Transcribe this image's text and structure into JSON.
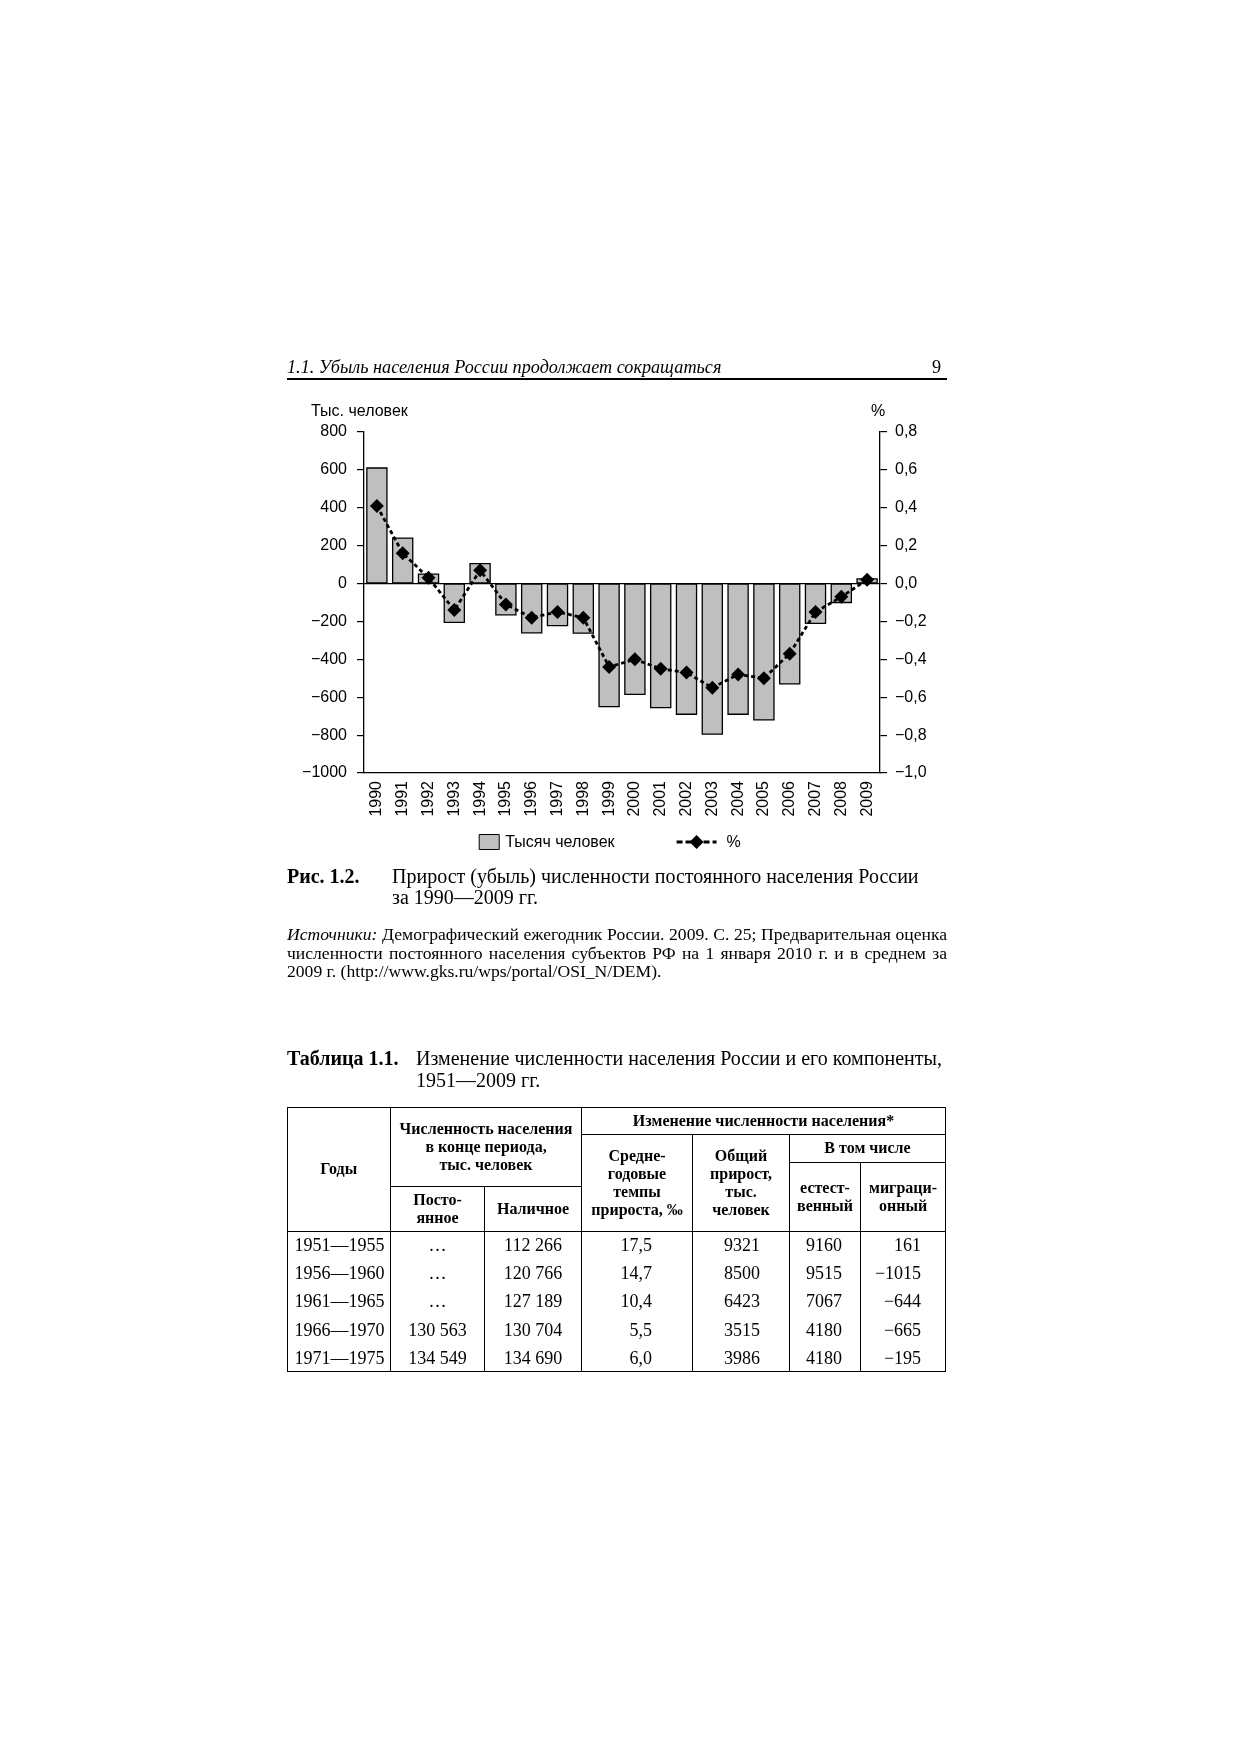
{
  "chart_data": [
    {
      "type": "bar",
      "title": "Прирост (убыль) численности постоянного населения России за 1990—2009 гг.",
      "ylabel": "Тыс. человек",
      "y2label": "%",
      "categories": [
        "1990",
        "1991",
        "1992",
        "1993",
        "1994",
        "1995",
        "1996",
        "1997",
        "1998",
        "1999",
        "2000",
        "2001",
        "2002",
        "2003",
        "2004",
        "2005",
        "2006",
        "2007",
        "2008",
        "2009"
      ],
      "series": [
        {
          "name": "Тысяч человек",
          "type": "bar",
          "color": "#bfbfbf",
          "values": [
            610,
            240,
            50,
            -205,
            105,
            -165,
            -260,
            -222,
            -262,
            -650,
            -585,
            -655,
            -690,
            -795,
            -690,
            -720,
            -530,
            -210,
            -100,
            25
          ]
        },
        {
          "name": "%",
          "type": "line",
          "axis": "y2",
          "color": "#000000",
          "marker": "diamond",
          "line_style": "dotted",
          "values": [
            0.41,
            0.16,
            0.03,
            -0.14,
            0.07,
            -0.11,
            -0.18,
            -0.15,
            -0.18,
            -0.44,
            -0.4,
            -0.45,
            -0.47,
            -0.55,
            -0.48,
            -0.5,
            -0.37,
            -0.15,
            -0.07,
            0.02
          ]
        }
      ],
      "ylim": [
        -1000,
        800
      ],
      "yticks": [
        {
          "value": -1000,
          "label": "−1000"
        },
        {
          "value": -800,
          "label": "−800"
        },
        {
          "value": -600,
          "label": "−600"
        },
        {
          "value": -400,
          "label": "−400"
        },
        {
          "value": -200,
          "label": "−200"
        },
        0,
        200,
        400,
        600,
        800
      ],
      "y2lim": [
        -1,
        0.8
      ],
      "y2ticks": [
        {
          "value": -1,
          "label": "−1,0"
        },
        {
          "value": -0.8,
          "label": "−0,8"
        },
        {
          "value": -0.6,
          "label": "−0,6"
        },
        {
          "value": -0.4,
          "label": "−0,4"
        },
        {
          "value": -0.2,
          "label": "−0,2"
        },
        {
          "value": 0,
          "label": "0,0"
        },
        {
          "value": 0.2,
          "label": "0,2"
        },
        {
          "value": 0.4,
          "label": "0,4"
        },
        {
          "value": 0.6,
          "label": "0,6"
        },
        {
          "value": 0.8,
          "label": "0,8"
        }
      ],
      "ref_lines": [
        {
          "axis": "y",
          "value": 0
        }
      ],
      "legend": "bottom",
      "annotations": [
        "1.1. Убыль населения России продолжает сокращаться",
        "9",
        "Рис. 1.2.",
        "Источники:",
        "Демографический ежегодник России. 2009. С. 25; Предварительная оценка численности постоянного населения субъектов РФ на 1 января 2010 г. и в среднем за 2009 г. (http://www.gks.ru/wps/portal/OSI_N/DEM)."
      ]
    },
    {
      "type": "other",
      "title": "Изменение численности населения России и его компоненты, 1951—2009 гг.",
      "annotations": [
        "Таблица 1.1.",
        "Годы",
        "Численность населения\nв конце периода,\nтыс. человек",
        "Изменение численности населения*",
        "Средне-\nгодовые\nтемпы\nприроста, ‰",
        "Общий\nприрост,\nтыс.\nчеловек",
        "В том числе",
        "естест-\nвенный",
        "миграци-\nонный",
        "Посто-\nянное",
        "Наличное",
        "1951—1955",
        "…",
        "112 266",
        "17,5",
        "9321",
        "9160",
        "161",
        "1956—1960",
        "…",
        "120 766",
        "14,7",
        "8500",
        "9515",
        "−1015",
        "1961—1965",
        "…",
        "127 189",
        "10,4",
        "6423",
        "7067",
        "−644",
        "1966—1970",
        "130 563",
        "130 704",
        "5,5",
        "3515",
        "4180",
        "−665",
        "1971—1975",
        "134 549",
        "134 690",
        "6,0",
        "3986",
        "4180",
        "−195"
      ]
    }
  ]
}
